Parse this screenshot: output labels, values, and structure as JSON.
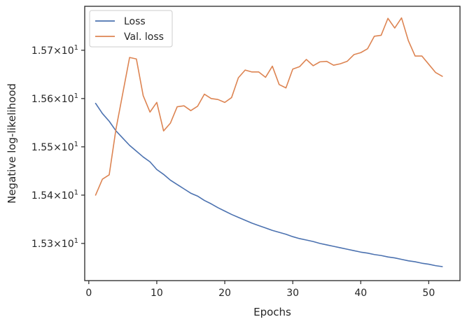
{
  "chart_data": {
    "type": "line",
    "xlabel": "Epochs",
    "ylabel": "Negative log-likelihood",
    "xlim": [
      -0.6,
      54.6
    ],
    "ylim": [
      15.223,
      15.791
    ],
    "xticks": [
      {
        "value": 0,
        "label": "0"
      },
      {
        "value": 10,
        "label": "10"
      },
      {
        "value": 20,
        "label": "20"
      },
      {
        "value": 30,
        "label": "30"
      },
      {
        "value": 40,
        "label": "40"
      },
      {
        "value": 50,
        "label": "50"
      }
    ],
    "yticks": [
      {
        "value": 15.3,
        "mantissa": "1.53",
        "exponent": "1"
      },
      {
        "value": 15.4,
        "mantissa": "1.54",
        "exponent": "1"
      },
      {
        "value": 15.5,
        "mantissa": "1.55",
        "exponent": "1"
      },
      {
        "value": 15.6,
        "mantissa": "1.56",
        "exponent": "1"
      },
      {
        "value": 15.7,
        "mantissa": "1.57",
        "exponent": "1"
      }
    ],
    "y_tick_times": "×10",
    "grid": false,
    "legend_position": "top-left",
    "x": [
      1,
      2,
      3,
      4,
      5,
      6,
      7,
      8,
      9,
      10,
      11,
      12,
      13,
      14,
      15,
      16,
      17,
      18,
      19,
      20,
      21,
      22,
      23,
      24,
      25,
      26,
      27,
      28,
      29,
      30,
      31,
      32,
      33,
      34,
      35,
      36,
      37,
      38,
      39,
      40,
      41,
      42,
      43,
      44,
      45,
      46,
      47,
      48,
      49,
      50,
      51,
      52
    ],
    "series": [
      {
        "name": "Loss",
        "color": "#4c72b0",
        "values": [
          15.59,
          15.569,
          15.553,
          15.533,
          15.518,
          15.503,
          15.491,
          15.479,
          15.469,
          15.453,
          15.443,
          15.431,
          15.422,
          15.413,
          15.404,
          15.398,
          15.389,
          15.382,
          15.374,
          15.367,
          15.36,
          15.354,
          15.348,
          15.342,
          15.337,
          15.332,
          15.327,
          15.323,
          15.319,
          15.314,
          15.31,
          15.307,
          15.304,
          15.3,
          15.297,
          15.294,
          15.291,
          15.288,
          15.285,
          15.282,
          15.28,
          15.277,
          15.275,
          15.272,
          15.27,
          15.267,
          15.264,
          15.262,
          15.259,
          15.257,
          15.254,
          15.252
        ]
      },
      {
        "name": "Val. loss",
        "color": "#dd8452",
        "values": [
          15.4,
          15.433,
          15.442,
          15.537,
          15.611,
          15.685,
          15.682,
          15.606,
          15.572,
          15.592,
          15.533,
          15.549,
          15.583,
          15.585,
          15.575,
          15.584,
          15.609,
          15.6,
          15.598,
          15.592,
          15.602,
          15.643,
          15.659,
          15.655,
          15.655,
          15.644,
          15.667,
          15.629,
          15.622,
          15.661,
          15.666,
          15.681,
          15.668,
          15.676,
          15.677,
          15.669,
          15.672,
          15.677,
          15.691,
          15.695,
          15.703,
          15.729,
          15.731,
          15.766,
          15.746,
          15.767,
          15.72,
          15.688,
          15.688,
          15.671,
          15.654,
          15.646
        ]
      }
    ]
  }
}
